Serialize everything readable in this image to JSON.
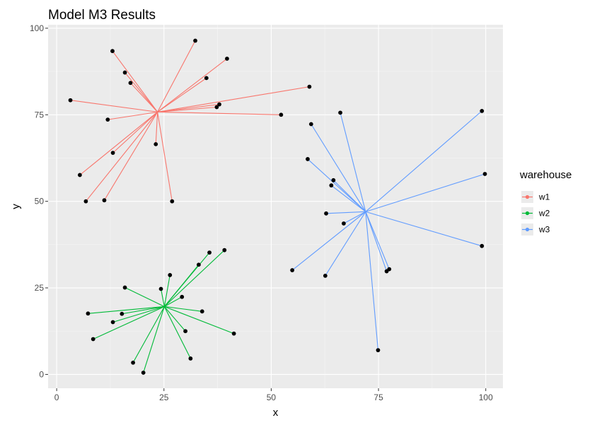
{
  "chart_data": {
    "type": "scatter",
    "title": "Model M3 Results",
    "xlabel": "x",
    "ylabel": "y",
    "xlim": [
      -2,
      104
    ],
    "ylim": [
      -4,
      101
    ],
    "x_ticks": [
      0,
      25,
      50,
      75,
      100
    ],
    "y_ticks": [
      0,
      25,
      50,
      75,
      100
    ],
    "grid": true,
    "legend": {
      "title": "warehouse",
      "placement": "right",
      "entries": [
        "w1",
        "w2",
        "w3"
      ]
    },
    "series": [
      {
        "name": "w1",
        "color": "#F8766D",
        "center": [
          23.5,
          75.8
        ],
        "points": [
          [
            3.2,
            79.2
          ],
          [
            13.0,
            93.4
          ],
          [
            15.9,
            87.2
          ],
          [
            17.2,
            84.2
          ],
          [
            32.3,
            96.4
          ],
          [
            39.7,
            91.2
          ],
          [
            34.9,
            85.6
          ],
          [
            37.9,
            78.0
          ],
          [
            37.3,
            77.2
          ],
          [
            58.9,
            83.1
          ],
          [
            52.3,
            75.0
          ],
          [
            11.9,
            73.6
          ],
          [
            23.1,
            66.5
          ],
          [
            13.1,
            64.0
          ],
          [
            5.4,
            57.6
          ],
          [
            6.8,
            50.0
          ],
          [
            11.1,
            50.3
          ],
          [
            26.9,
            50.0
          ]
        ]
      },
      {
        "name": "w2",
        "color": "#00BA38",
        "center": [
          25.1,
          19.6
        ],
        "points": [
          [
            15.9,
            25.1
          ],
          [
            24.3,
            24.7
          ],
          [
            26.4,
            28.7
          ],
          [
            33.1,
            31.7
          ],
          [
            35.6,
            35.2
          ],
          [
            39.1,
            35.9
          ],
          [
            7.3,
            17.6
          ],
          [
            15.2,
            17.5
          ],
          [
            13.1,
            15.1
          ],
          [
            29.2,
            22.4
          ],
          [
            33.9,
            18.2
          ],
          [
            8.5,
            10.2
          ],
          [
            30.0,
            12.5
          ],
          [
            41.3,
            11.8
          ],
          [
            17.8,
            3.4
          ],
          [
            20.2,
            0.5
          ],
          [
            31.2,
            4.6
          ]
        ]
      },
      {
        "name": "w3",
        "color": "#619CFF",
        "center": [
          72.0,
          47.0
        ],
        "points": [
          [
            66.1,
            75.6
          ],
          [
            59.3,
            72.3
          ],
          [
            99.1,
            76.1
          ],
          [
            58.5,
            62.2
          ],
          [
            64.5,
            56.1
          ],
          [
            64.0,
            54.6
          ],
          [
            99.8,
            57.9
          ],
          [
            62.8,
            46.5
          ],
          [
            66.9,
            43.6
          ],
          [
            99.1,
            37.1
          ],
          [
            54.9,
            30.1
          ],
          [
            62.6,
            28.5
          ],
          [
            76.9,
            29.8
          ],
          [
            77.5,
            30.4
          ],
          [
            74.9,
            7.0
          ]
        ]
      }
    ]
  }
}
